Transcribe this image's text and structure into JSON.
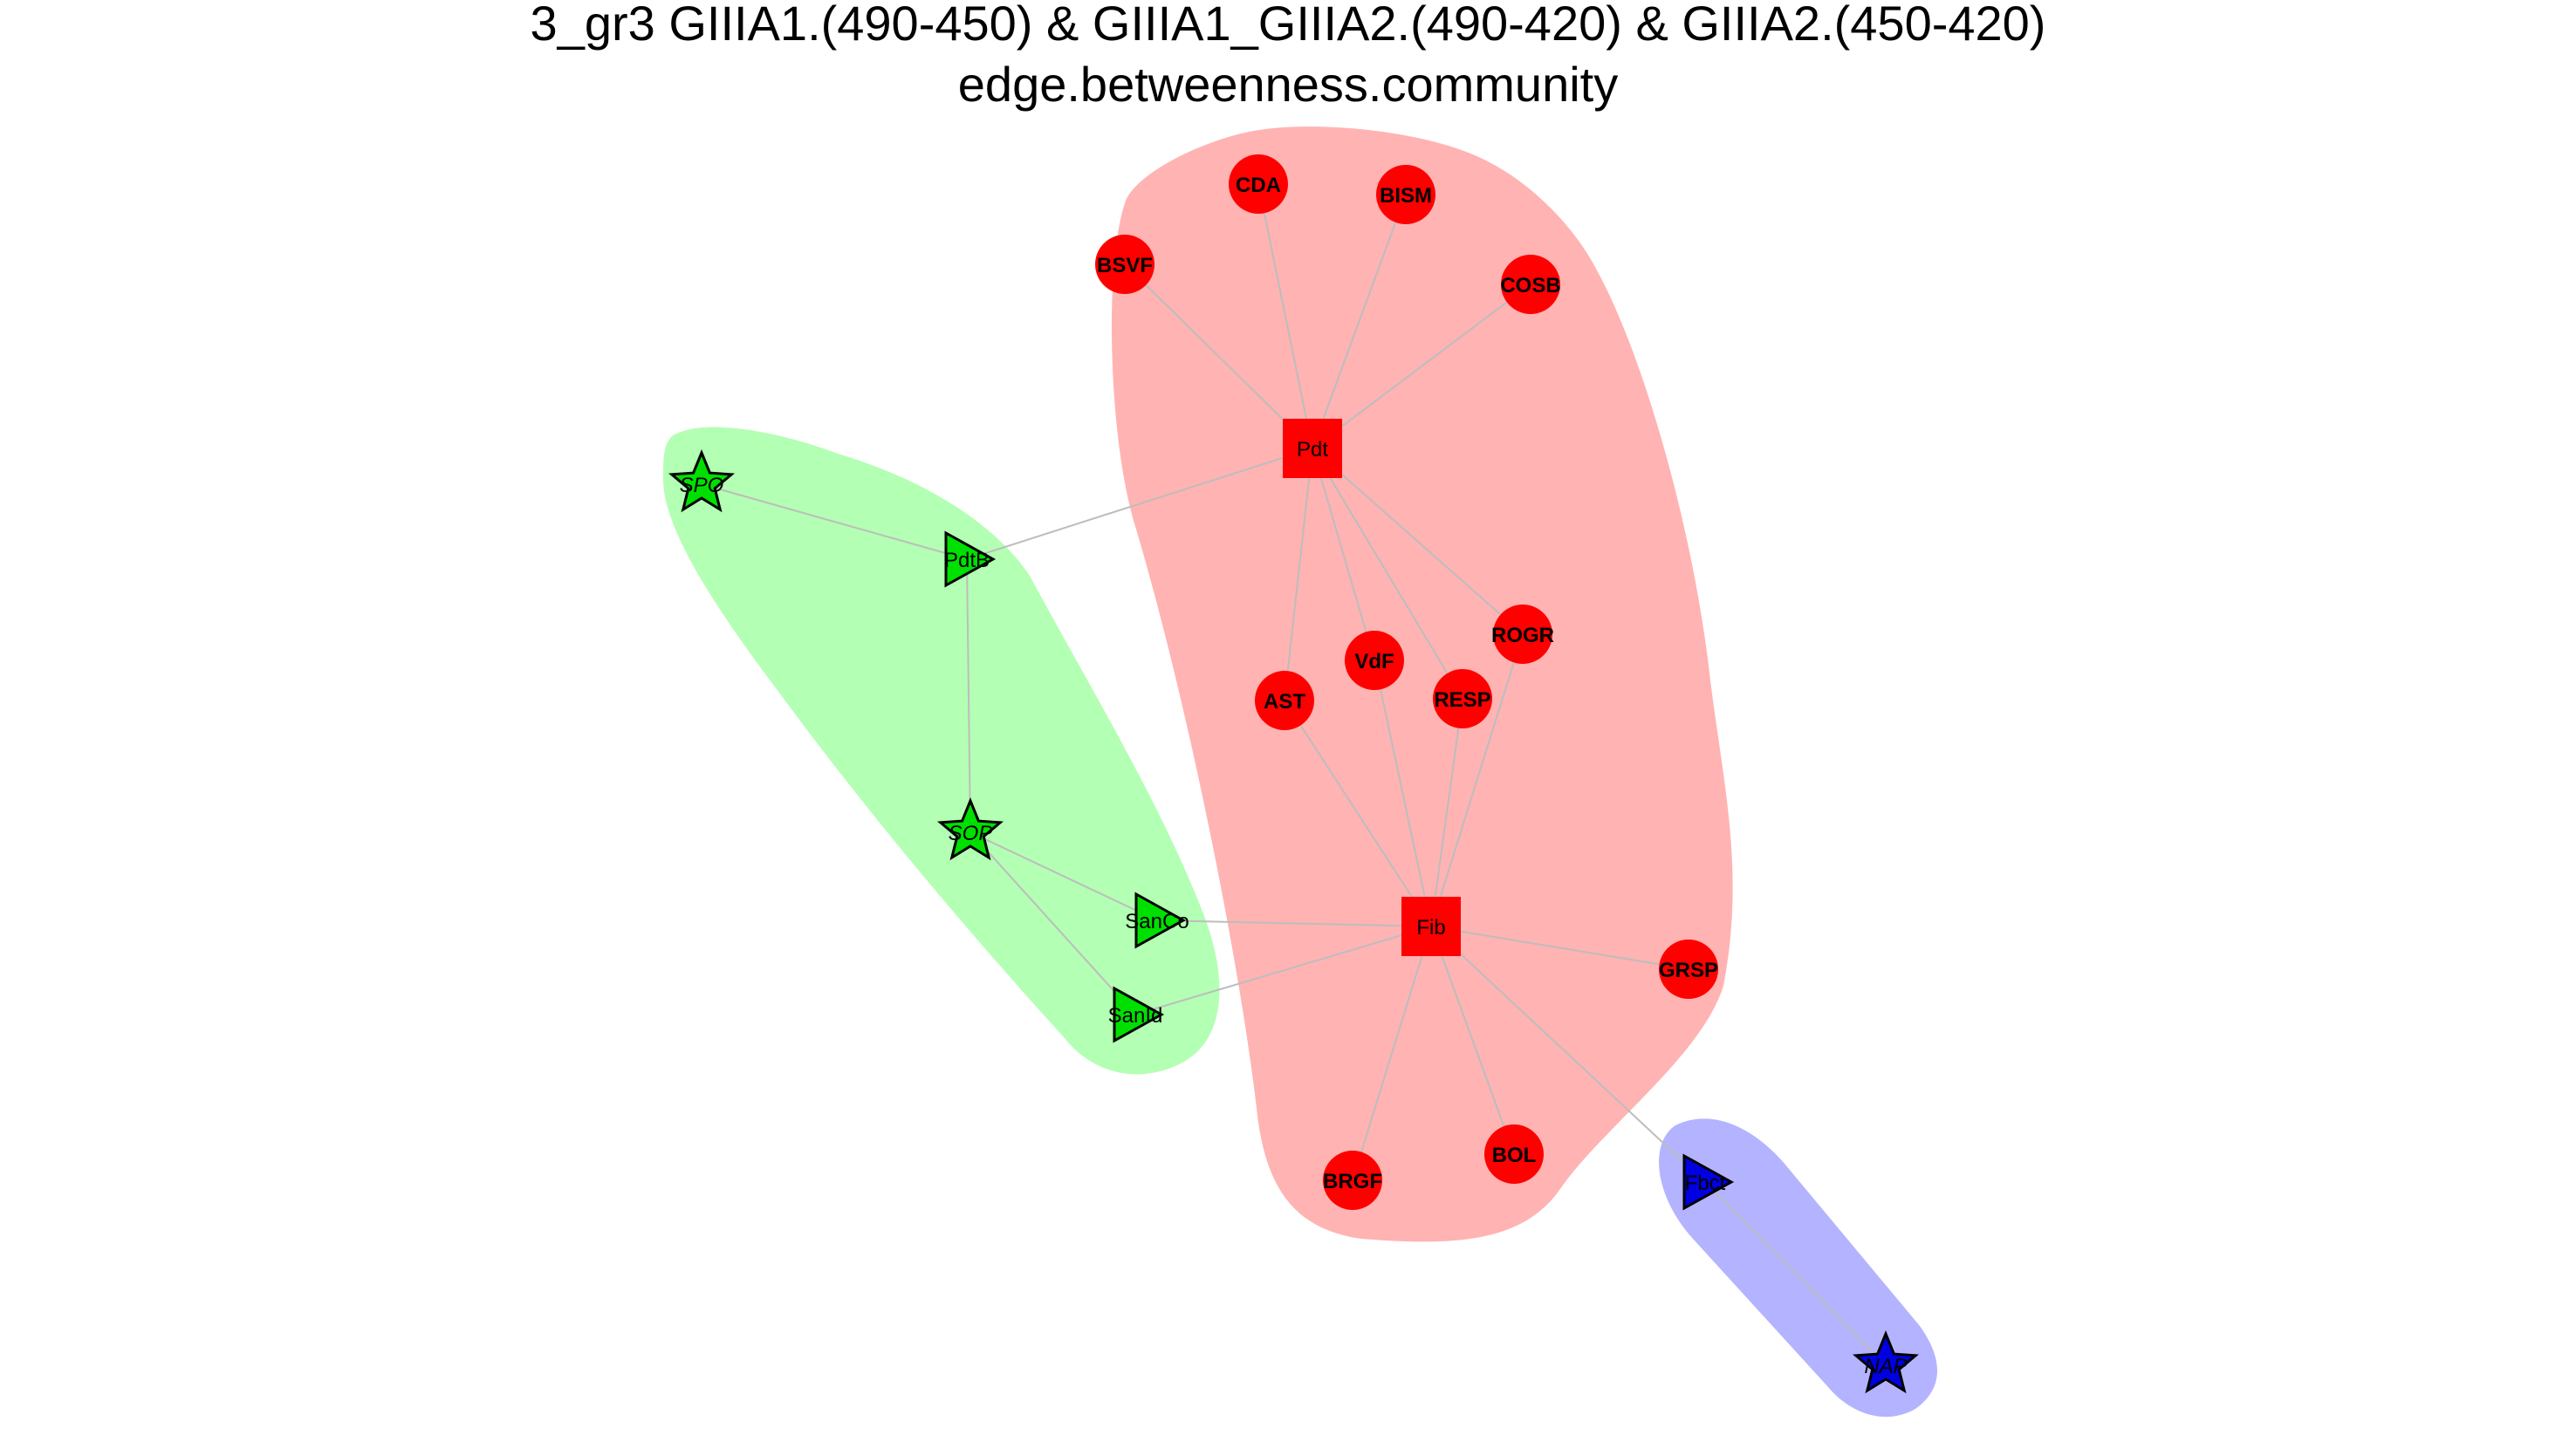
{
  "title_line1": "3_gr3 GIIIA1.(490-450) & GIIIA1_GIIIA2.(490-420) & GIIIA2.(450-420)",
  "title_line2": "edge.betweenness.community",
  "colors": {
    "community_red": "#ff0000",
    "community_green": "#00e000",
    "community_blue": "#0000e0",
    "hull_red": "#ffb3b3",
    "hull_green": "#b3ffb3",
    "hull_blue": "#b3b3ff",
    "edge": "#bdbdbd"
  },
  "communities": [
    {
      "id": "red",
      "nodes": [
        "CDA",
        "BISM",
        "BSVF",
        "COSB",
        "Pdt",
        "ROGR",
        "VdF",
        "RESP",
        "AST",
        "Fib",
        "GRSP",
        "BRGF",
        "BOL"
      ]
    },
    {
      "id": "green",
      "nodes": [
        "SPO",
        "PdtB",
        "SOP",
        "SanCo",
        "SanId"
      ]
    },
    {
      "id": "blue",
      "nodes": [
        "Fbct",
        "NAP"
      ]
    }
  ],
  "nodes": [
    {
      "id": "CDA",
      "label": "CDA",
      "shape": "circle",
      "community": "red"
    },
    {
      "id": "BISM",
      "label": "BISM",
      "shape": "circle",
      "community": "red"
    },
    {
      "id": "BSVF",
      "label": "BSVF",
      "shape": "circle",
      "community": "red"
    },
    {
      "id": "COSB",
      "label": "COSB",
      "shape": "circle",
      "community": "red"
    },
    {
      "id": "Pdt",
      "label": "Pdt",
      "shape": "square",
      "community": "red"
    },
    {
      "id": "ROGR",
      "label": "ROGR",
      "shape": "circle",
      "community": "red"
    },
    {
      "id": "VdF",
      "label": "VdF",
      "shape": "circle",
      "community": "red"
    },
    {
      "id": "RESP",
      "label": "RESP",
      "shape": "circle",
      "community": "red"
    },
    {
      "id": "AST",
      "label": "AST",
      "shape": "circle",
      "community": "red"
    },
    {
      "id": "Fib",
      "label": "Fib",
      "shape": "square",
      "community": "red"
    },
    {
      "id": "GRSP",
      "label": "GRSP",
      "shape": "circle",
      "community": "red"
    },
    {
      "id": "BRGF",
      "label": "BRGF",
      "shape": "circle",
      "community": "red"
    },
    {
      "id": "BOL",
      "label": "BOL",
      "shape": "circle",
      "community": "red"
    },
    {
      "id": "SPO",
      "label": "SPO",
      "shape": "star",
      "community": "green"
    },
    {
      "id": "PdtB",
      "label": "PdtB",
      "shape": "triangle",
      "community": "green"
    },
    {
      "id": "SOP",
      "label": "SOP",
      "shape": "star",
      "community": "green"
    },
    {
      "id": "SanCo",
      "label": "SanCo",
      "shape": "triangle",
      "community": "green"
    },
    {
      "id": "SanId",
      "label": "SanId",
      "shape": "triangle",
      "community": "green"
    },
    {
      "id": "Fbct",
      "label": "Fbct",
      "shape": "triangle",
      "community": "blue"
    },
    {
      "id": "NAP",
      "label": "NAP",
      "shape": "star",
      "community": "blue"
    }
  ],
  "edges": [
    [
      "Pdt",
      "CDA"
    ],
    [
      "Pdt",
      "BISM"
    ],
    [
      "Pdt",
      "BSVF"
    ],
    [
      "Pdt",
      "COSB"
    ],
    [
      "Pdt",
      "AST"
    ],
    [
      "Pdt",
      "VdF"
    ],
    [
      "Pdt",
      "RESP"
    ],
    [
      "Pdt",
      "ROGR"
    ],
    [
      "Pdt",
      "PdtB"
    ],
    [
      "Fib",
      "AST"
    ],
    [
      "Fib",
      "VdF"
    ],
    [
      "Fib",
      "RESP"
    ],
    [
      "Fib",
      "ROGR"
    ],
    [
      "Fib",
      "GRSP"
    ],
    [
      "Fib",
      "BRGF"
    ],
    [
      "Fib",
      "BOL"
    ],
    [
      "Fib",
      "SanCo"
    ],
    [
      "Fib",
      "SanId"
    ],
    [
      "Fib",
      "Fbct"
    ],
    [
      "SPO",
      "PdtB"
    ],
    [
      "PdtB",
      "SOP"
    ],
    [
      "SOP",
      "SanCo"
    ],
    [
      "SOP",
      "SanId"
    ],
    [
      "Fbct",
      "NAP"
    ]
  ]
}
